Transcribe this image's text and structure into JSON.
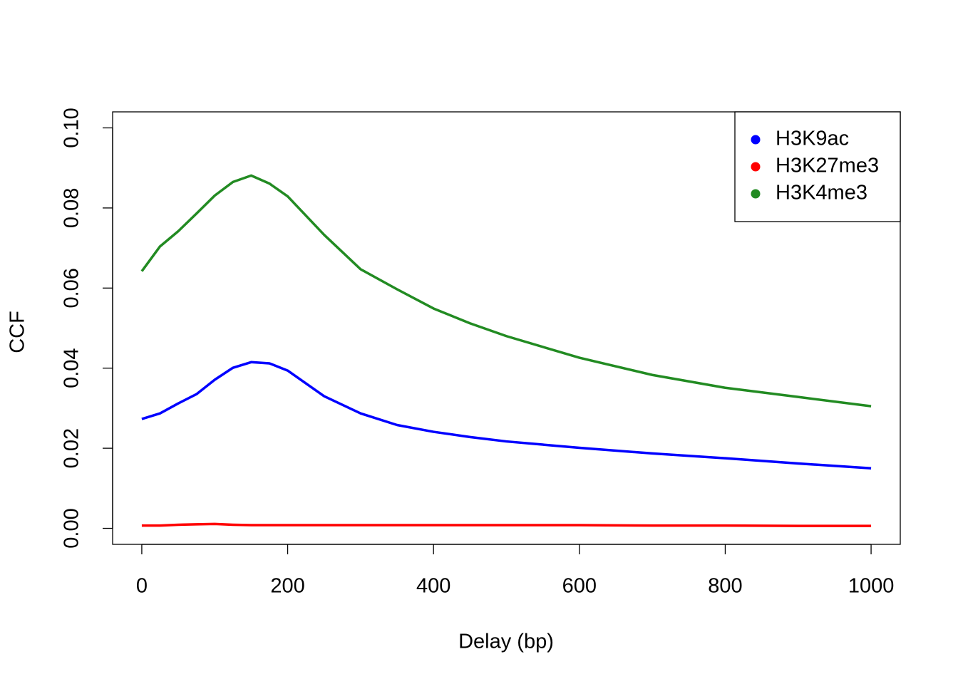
{
  "chart_data": {
    "type": "line",
    "x_label": "Delay (bp)",
    "y_label": "CCF",
    "x": [
      0,
      25,
      50,
      75,
      100,
      125,
      150,
      175,
      200,
      250,
      300,
      350,
      400,
      450,
      500,
      600,
      700,
      800,
      900,
      1000
    ],
    "series": [
      {
        "name": "H3K9ac",
        "color": "#0000ff",
        "values": [
          0.0273,
          0.0287,
          0.0312,
          0.0335,
          0.0371,
          0.0401,
          0.0415,
          0.0412,
          0.0394,
          0.033,
          0.0287,
          0.0258,
          0.0241,
          0.0228,
          0.0217,
          0.0201,
          0.0187,
          0.0175,
          0.0162,
          0.015
        ]
      },
      {
        "name": "H3K27me3",
        "color": "#ff0000",
        "values": [
          0.0007,
          0.0007,
          0.0009,
          0.001,
          0.0011,
          0.0009,
          0.0008,
          0.0008,
          0.0008,
          0.0008,
          0.0008,
          0.0008,
          0.0008,
          0.0008,
          0.0008,
          0.0008,
          0.0007,
          0.0007,
          0.0006,
          0.0006
        ]
      },
      {
        "name": "H3K4me3",
        "color": "#228b22",
        "values": [
          0.0642,
          0.0704,
          0.0742,
          0.0786,
          0.0831,
          0.0865,
          0.0881,
          0.0861,
          0.0829,
          0.0733,
          0.0647,
          0.0597,
          0.0549,
          0.0512,
          0.048,
          0.0426,
          0.0383,
          0.0351,
          0.0328,
          0.0305
        ]
      }
    ],
    "xlim": [
      -40,
      1040
    ],
    "xticks": [
      0,
      200,
      400,
      600,
      800,
      1000
    ],
    "ylim": [
      -0.004,
      0.104
    ],
    "yticks": [
      {
        "value": 0,
        "label": "0.00"
      },
      0.02,
      0.04,
      0.06,
      0.08,
      {
        "value": 0.1,
        "label": "0.10"
      }
    ],
    "legend": "top-right"
  }
}
